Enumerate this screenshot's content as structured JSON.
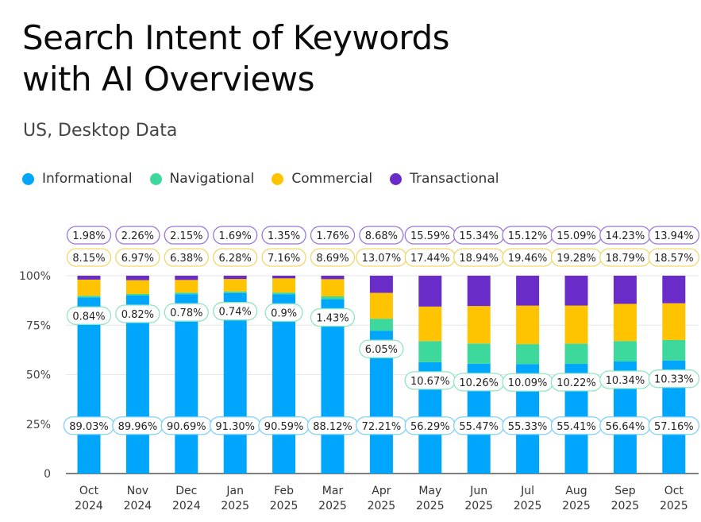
{
  "chart_data": {
    "type": "bar",
    "stacked": true,
    "title": "Search Intent of Keywords with AI Overviews",
    "title_lines": [
      "Search Intent of Keywords",
      "with AI Overviews"
    ],
    "subtitle": "US, Desktop Data",
    "categories": [
      [
        "Oct",
        "2024"
      ],
      [
        "Nov",
        "2024"
      ],
      [
        "Dec",
        "2024"
      ],
      [
        "Jan",
        "2025"
      ],
      [
        "Feb",
        "2025"
      ],
      [
        "Mar",
        "2025"
      ],
      [
        "Apr",
        "2025"
      ],
      [
        "May",
        "2025"
      ],
      [
        "Jun",
        "2025"
      ],
      [
        "Jul",
        "2025"
      ],
      [
        "Aug",
        "2025"
      ],
      [
        "Sep",
        "2025"
      ],
      [
        "Oct",
        "2025"
      ]
    ],
    "series": [
      {
        "name": "Informational",
        "color": "#00a6fb",
        "border": "#7fd0f7",
        "values": [
          89.03,
          89.96,
          90.69,
          91.3,
          90.59,
          88.12,
          72.21,
          56.29,
          55.47,
          55.33,
          55.41,
          56.64,
          57.16
        ],
        "labels": [
          "89.03%",
          "89.96%",
          "90.69%",
          "91.30%",
          "90.59%",
          "88.12%",
          "72.21%",
          "56.29%",
          "55.47%",
          "55.33%",
          "55.41%",
          "56.64%",
          "57.16%"
        ]
      },
      {
        "name": "Navigational",
        "color": "#3dd89b",
        "border": "#8fe6c3",
        "values": [
          0.84,
          0.82,
          0.78,
          0.74,
          0.9,
          1.43,
          6.05,
          10.67,
          10.26,
          10.09,
          10.22,
          10.34,
          10.33
        ],
        "labels": [
          "0.84%",
          "0.82%",
          "0.78%",
          "0.74%",
          "0.9%",
          "1.43%",
          "6.05%",
          "10.67%",
          "10.26%",
          "10.09%",
          "10.22%",
          "10.34%",
          "10.33%"
        ]
      },
      {
        "name": "Commercial",
        "color": "#ffc300",
        "border": "#f3d66a",
        "values": [
          8.15,
          6.97,
          6.38,
          6.28,
          7.16,
          8.69,
          13.07,
          17.44,
          18.94,
          19.46,
          19.28,
          18.79,
          18.57
        ],
        "labels": [
          "8.15%",
          "6.97%",
          "6.38%",
          "6.28%",
          "7.16%",
          "8.69%",
          "13.07%",
          "17.44%",
          "18.94%",
          "19.46%",
          "19.28%",
          "18.79%",
          "18.57%"
        ]
      },
      {
        "name": "Transactional",
        "color": "#6a2cc8",
        "border": "#9a78d6",
        "values": [
          1.98,
          2.26,
          2.15,
          1.69,
          1.35,
          1.76,
          8.68,
          15.59,
          15.34,
          15.12,
          15.09,
          14.23,
          13.94
        ],
        "labels": [
          "1.98%",
          "2.26%",
          "2.15%",
          "1.69%",
          "1.35%",
          "1.76%",
          "8.68%",
          "15.59%",
          "15.34%",
          "15.12%",
          "15.09%",
          "14.23%",
          "13.94%"
        ]
      }
    ],
    "ylim": [
      0,
      100
    ],
    "yticks": [
      0,
      25,
      50,
      75,
      100
    ],
    "ytick_labels": [
      "0",
      "25%",
      "50%",
      "75%",
      "100%"
    ],
    "grid": true,
    "legend_placement": "top-left"
  }
}
